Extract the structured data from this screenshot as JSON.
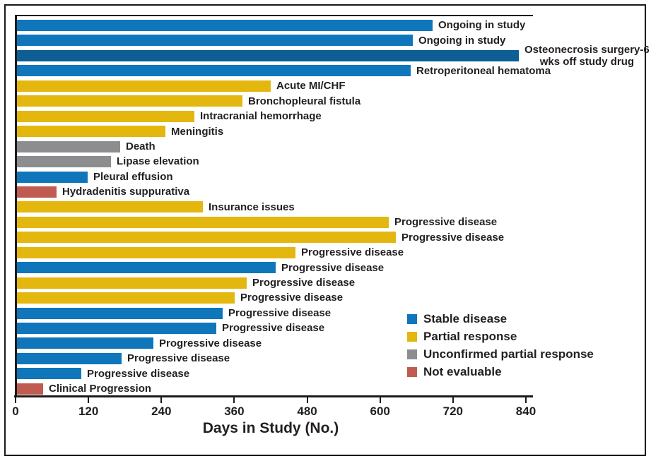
{
  "figure": {
    "xlabel": "Days in Study (No.)"
  },
  "legend": {
    "items": [
      {
        "label": "Stable disease",
        "color": "#0f76bb"
      },
      {
        "label": "Partial response",
        "color": "#e3b70d"
      },
      {
        "label": "Unconfirmed partial response",
        "color": "#8d8d8f"
      },
      {
        "label": "Not evaluable",
        "color": "#c05b51"
      }
    ]
  },
  "chart_data": {
    "type": "bar",
    "orientation": "horizontal",
    "title": "",
    "xlabel": "Days in Study (No.)",
    "ylabel": "",
    "xlim": [
      0,
      840
    ],
    "x_ticks": [
      0,
      120,
      240,
      360,
      480,
      600,
      720,
      840
    ],
    "grid": false,
    "legend_position": "lower right",
    "colors": {
      "Stable disease": "#0f76bb",
      "Partial response": "#e3b70d",
      "Unconfirmed partial response": "#8d8d8f",
      "Not evaluable": "#c05b51"
    },
    "bars": [
      {
        "label": "Ongoing in study",
        "days": 684,
        "response": "Stable disease"
      },
      {
        "label": "Ongoing in study",
        "days": 651,
        "response": "Stable disease"
      },
      {
        "label": "Osteonecrosis surgery-6\nwks off study drug",
        "days": 826,
        "response": "Stable disease",
        "color": "#0d5e94"
      },
      {
        "label": "Retroperitoneal hematoma",
        "days": 648,
        "response": "Stable disease"
      },
      {
        "label": "Acute MI/CHF",
        "days": 418,
        "response": "Partial response"
      },
      {
        "label": "Bronchopleural fistula",
        "days": 371,
        "response": "Partial response"
      },
      {
        "label": "Intracranial hemorrhage",
        "days": 292,
        "response": "Partial response"
      },
      {
        "label": "Meningitis",
        "days": 244,
        "response": "Partial response"
      },
      {
        "label": "Death",
        "days": 170,
        "response": "Unconfirmed partial response"
      },
      {
        "label": "Lipase elevation",
        "days": 155,
        "response": "Unconfirmed partial response"
      },
      {
        "label": "Pleural effusion",
        "days": 116,
        "response": "Stable disease"
      },
      {
        "label": "Hydradenitis suppurativa",
        "days": 65,
        "response": "Not evaluable"
      },
      {
        "label": "Insurance issues",
        "days": 306,
        "response": "Partial response"
      },
      {
        "label": "Progressive disease",
        "days": 612,
        "response": "Partial response"
      },
      {
        "label": "Progressive disease",
        "days": 624,
        "response": "Partial response"
      },
      {
        "label": "Progressive disease",
        "days": 458,
        "response": "Partial response"
      },
      {
        "label": "Progressive disease",
        "days": 426,
        "response": "Stable disease"
      },
      {
        "label": "Progressive disease",
        "days": 378,
        "response": "Partial response"
      },
      {
        "label": "Progressive disease",
        "days": 358,
        "response": "Partial response"
      },
      {
        "label": "Progressive disease",
        "days": 339,
        "response": "Stable disease"
      },
      {
        "label": "Progressive disease",
        "days": 328,
        "response": "Stable disease"
      },
      {
        "label": "Progressive disease",
        "days": 225,
        "response": "Stable disease"
      },
      {
        "label": "Progressive disease",
        "days": 172,
        "response": "Stable disease"
      },
      {
        "label": "Progressive disease",
        "days": 106,
        "response": "Stable disease"
      },
      {
        "label": "Clinical Progression",
        "days": 43,
        "response": "Not evaluable"
      }
    ]
  }
}
